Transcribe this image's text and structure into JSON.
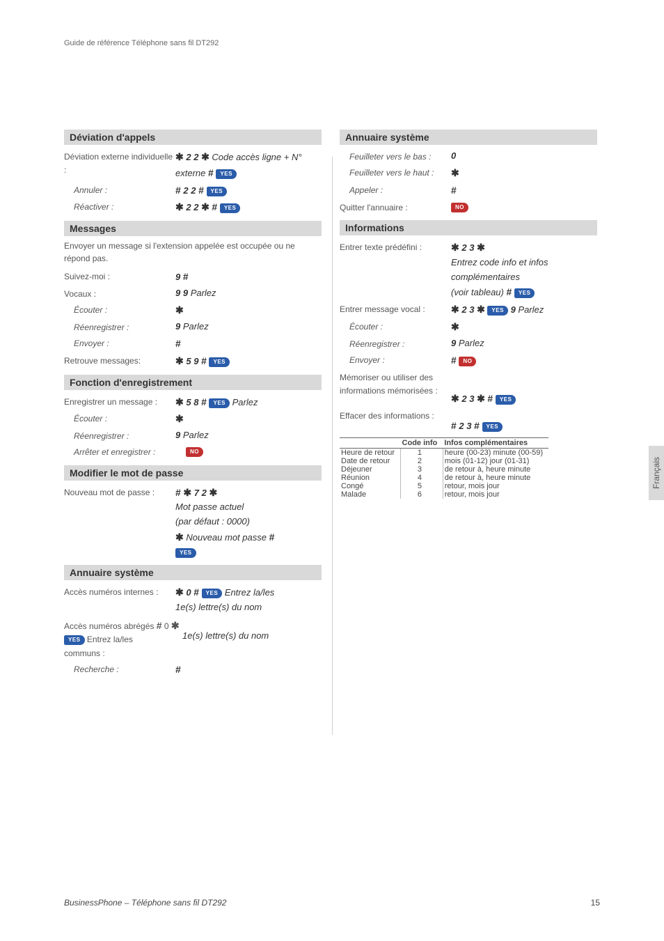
{
  "top_guide": "Guide de référence Téléphone sans fil DT292",
  "side_tab": "Français",
  "footer_title": "BusinessPhone – Téléphone sans fil DT292",
  "footer_page": "15",
  "buttons": {
    "yes": "YES",
    "no": "NO"
  },
  "symbols": {
    "star": "✱",
    "hash": "#"
  },
  "left": {
    "s1": {
      "title": "Déviation d'appels",
      "r1_label": "Déviation externe individuelle :",
      "r1_cmd_a": "2 2",
      "r1_cmd_tail": " Code accès ligne + N° externe ",
      "r2_label": "Annuler :",
      "r2_cmd": "2 2",
      "r3_label": "Réactiver :",
      "r3_cmd": "2 2"
    },
    "s2": {
      "title": "Messages",
      "note": "Envoyer un message si l'extension appelée est occupée ou ne répond pas.",
      "r1_label": "Suivez-moi :",
      "r1_cmd": "9",
      "r2_label": "Vocaux :",
      "r2_cmd": "9 9",
      "r2_tail": " Parlez",
      "r3_label": "Écouter :",
      "r4_label": "Réenregistrer :",
      "r4_cmd": "9",
      "r4_tail": " Parlez",
      "r5_label": "Envoyer :",
      "r6_label": "Retrouve messages:",
      "r6_cmd": "5 9"
    },
    "s3": {
      "title": "Fonction d'enregistrement",
      "r1_label": "Enregistrer un message :",
      "r1_cmd": "5 8",
      "r1_tail": " Parlez",
      "r2_label": "Écouter :",
      "r3_label": "Réenregistrer :",
      "r3_cmd": "9",
      "r3_tail": " Parlez",
      "r4_label": "Arrêter et enregistrer :"
    },
    "s4": {
      "title": "Modifier le mot de passe",
      "r1_label": "Nouveau mot de passe :",
      "r1_cmd": "7 2",
      "r1_line2": "Mot passe actuel",
      "r1_line3": "(par défaut : 0000)",
      "r1_line4": " Nouveau mot passe "
    },
    "s5": {
      "title": "Annuaire système",
      "r1_label": "Accès numéros internes :",
      "r1_cmd": "0",
      "r1_tail_a": " Entrez la/les",
      "r1_tail_b": "1e(s) lettre(s) du nom",
      "r2_label": "Accès numéros abrégés",
      "r2_cmd": "0",
      "r2_tail_a": " Entrez la/les",
      "r2_label2": "communs :",
      "r2_tail_b": "1e(s) lettre(s) du nom",
      "r3_label": "Recherche :"
    }
  },
  "right": {
    "s1": {
      "title": "Annuaire système",
      "r1_label": "Feuilleter vers le bas :",
      "r1_cmd": "0",
      "r2_label": "Feuilleter vers le haut :",
      "r3_label": "Appeler :",
      "r4_label": "Quitter l'annuaire :"
    },
    "s2": {
      "title": "Informations",
      "r1_label": "Entrer texte prédéfini :",
      "r1_cmd": "2 3",
      "r1_line2": "Entrez code info et infos complémentaires",
      "r1_line3": "(voir tableau) ",
      "r2_label": "Entrer message vocal :",
      "r2_cmd": "2 3",
      "r2_tail": "9",
      "r2_tail2": " Parlez",
      "r3_label": "Écouter :",
      "r4_label": "Réenregistrer :",
      "r4_cmd": "9",
      "r4_tail": " Parlez",
      "r5_label": "Envoyer :",
      "r6_label": "Mémoriser ou utiliser des informations mémorisées :",
      "r6_cmd": "2 3",
      "r7_label": "Effacer des informations :",
      "r7_cmd": "2 3"
    },
    "table": {
      "h1": "",
      "h2": "Code info",
      "h3": "Infos complémentaires",
      "rows": [
        [
          "Heure de retour",
          "1",
          "heure (00-23) minute (00-59)"
        ],
        [
          "Date de retour",
          "2",
          "mois (01-12) jour (01-31)"
        ],
        [
          "Déjeuner",
          "3",
          "de retour à, heure minute"
        ],
        [
          "Réunion",
          "4",
          "de retour à, heure minute"
        ],
        [
          "Congé",
          "5",
          "retour, mois jour"
        ],
        [
          "Malade",
          "6",
          "retour, mois jour"
        ]
      ]
    }
  }
}
